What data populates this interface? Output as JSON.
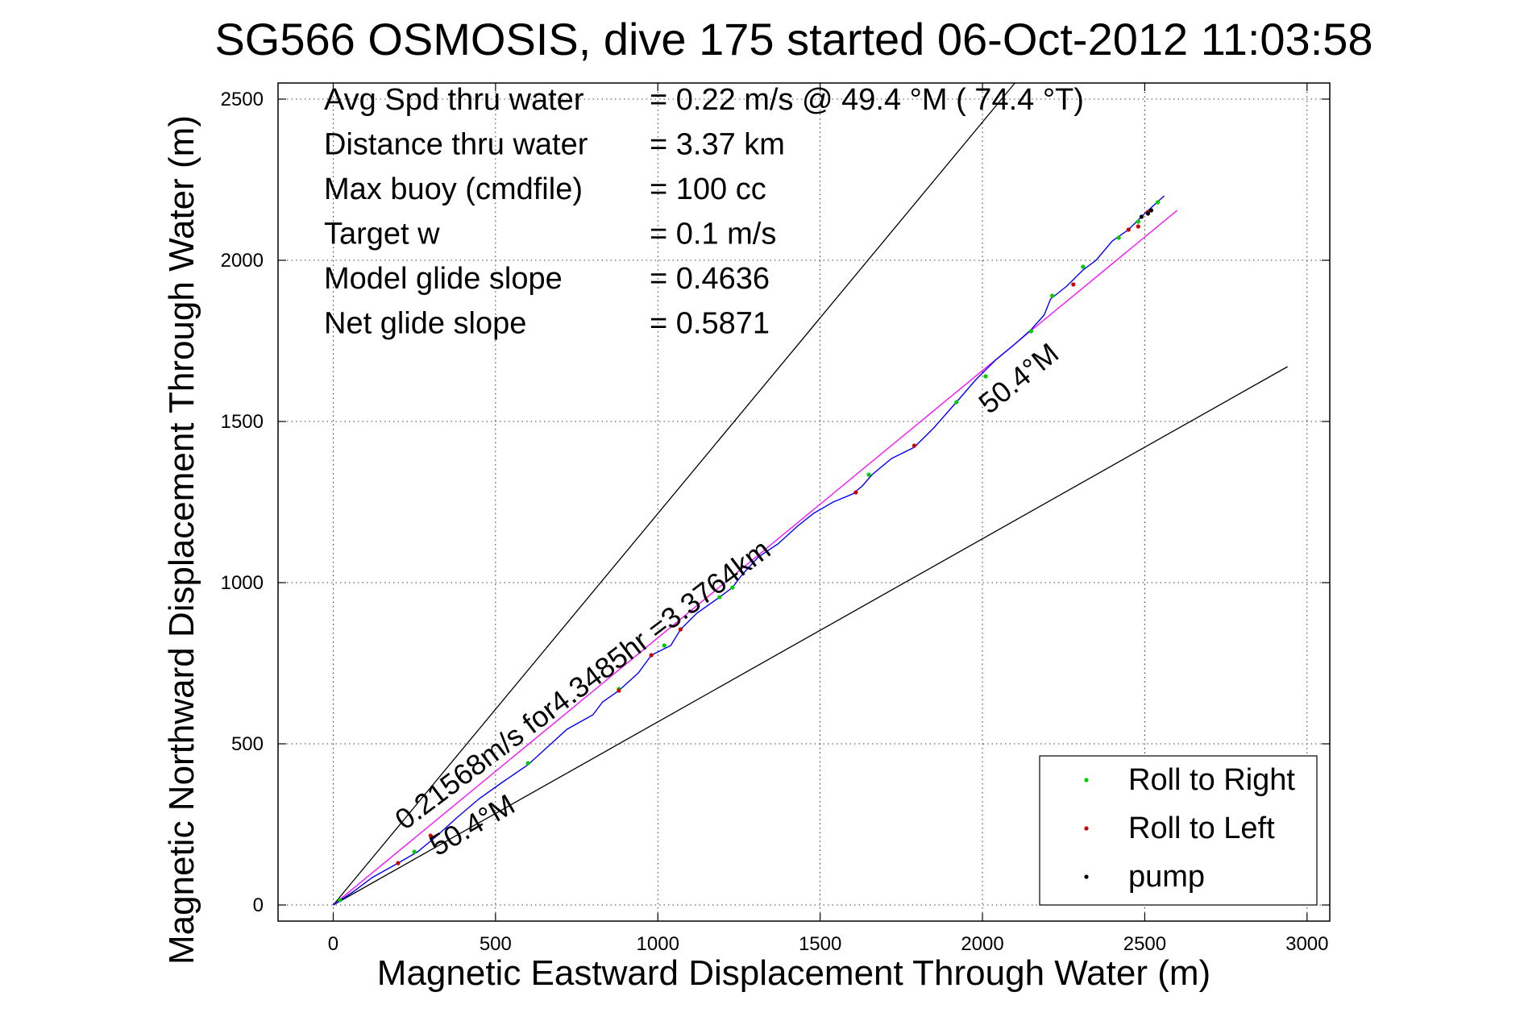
{
  "chart_data": {
    "type": "scatter",
    "title": "SG566 OSMOSIS, dive 175 started 06-Oct-2012 11:03:58",
    "xlabel": "Magnetic Eastward Displacement Through Water (m)",
    "ylabel": "Magnetic Northward Displacement Through Water (m)",
    "xlim": [
      -170,
      3070
    ],
    "ylim": [
      -50,
      2550
    ],
    "xticks": [
      0,
      500,
      1000,
      1500,
      2000,
      2500,
      3000
    ],
    "yticks": [
      0,
      500,
      1000,
      1500,
      2000,
      2500
    ],
    "grid": true,
    "legend_position": "bottom-right",
    "stats": [
      {
        "label": "Avg Spd thru water",
        "value": "=  0.22 m/s @  49.4 °M ( 74.4 °T)"
      },
      {
        "label": "Distance thru water",
        "value": "=  3.37 km"
      },
      {
        "label": "Max buoy (cmdfile)",
        "value": "= 100 cc"
      },
      {
        "label": "Target w",
        "value": "= 0.1 m/s"
      },
      {
        "label": "Model glide slope",
        "value": "= 0.4636"
      },
      {
        "label": "Net glide slope",
        "value": "= 0.5871"
      }
    ],
    "annotations": [
      {
        "text": "0.21568m/s for4.3485hr =3.3764km",
        "x": 220,
        "y": 230,
        "angle_deg": 37
      },
      {
        "text": "50.4°M",
        "x": 320,
        "y": 150,
        "angle_deg": 30
      },
      {
        "text": "50.4°M",
        "x": 2020,
        "y": 1520,
        "angle_deg": 39
      }
    ],
    "reference_lines": [
      {
        "name": "upper",
        "color": "#000000",
        "x": [
          0,
          2100
        ],
        "y": [
          0,
          2550
        ]
      },
      {
        "name": "lower",
        "color": "#000000",
        "x": [
          0,
          2940
        ],
        "y": [
          0,
          1670
        ]
      },
      {
        "name": "heading",
        "color": "#ff00ff",
        "x": [
          0,
          2600
        ],
        "y": [
          0,
          2155
        ]
      }
    ],
    "track": {
      "color": "#0000ff",
      "x": [
        0,
        60,
        120,
        200,
        260,
        320,
        380,
        450,
        520,
        600,
        660,
        720,
        800,
        830,
        880,
        940,
        980,
        1040,
        1070,
        1120,
        1190,
        1230,
        1260,
        1310,
        1370,
        1430,
        1480,
        1540,
        1600,
        1630,
        1660,
        1720,
        1790,
        1850,
        1920,
        1980,
        2040,
        2100,
        2150,
        2190,
        2210,
        2260,
        2310,
        2350,
        2400,
        2450,
        2500,
        2560
      ],
      "y": [
        0,
        40,
        85,
        130,
        165,
        215,
        270,
        330,
        380,
        435,
        490,
        545,
        590,
        630,
        665,
        720,
        775,
        805,
        855,
        905,
        955,
        985,
        1025,
        1080,
        1120,
        1175,
        1215,
        1250,
        1275,
        1300,
        1335,
        1385,
        1420,
        1480,
        1560,
        1630,
        1690,
        1740,
        1785,
        1830,
        1880,
        1920,
        1970,
        2000,
        2060,
        2095,
        2145,
        2200
      ]
    },
    "series": [
      {
        "name": "Roll to Right",
        "color": "#00cc00",
        "x": [
          20,
          250,
          600,
          880,
          1020,
          1190,
          1230,
          1650,
          1920,
          2010,
          2150,
          2215,
          2310,
          2420,
          2480,
          2540
        ],
        "y": [
          15,
          165,
          440,
          670,
          805,
          955,
          985,
          1335,
          1560,
          1640,
          1780,
          1890,
          1980,
          2070,
          2120,
          2180
        ]
      },
      {
        "name": "Roll to Left",
        "color": "#cc0000",
        "x": [
          200,
          300,
          880,
          980,
          1070,
          1610,
          1790,
          2280,
          2450,
          2480,
          2510
        ],
        "y": [
          130,
          215,
          665,
          775,
          855,
          1280,
          1425,
          1925,
          2095,
          2105,
          2150
        ]
      },
      {
        "name": "pump",
        "color": "#000000",
        "x": [
          2490,
          2510,
          2520
        ],
        "y": [
          2135,
          2145,
          2155
        ]
      }
    ]
  }
}
